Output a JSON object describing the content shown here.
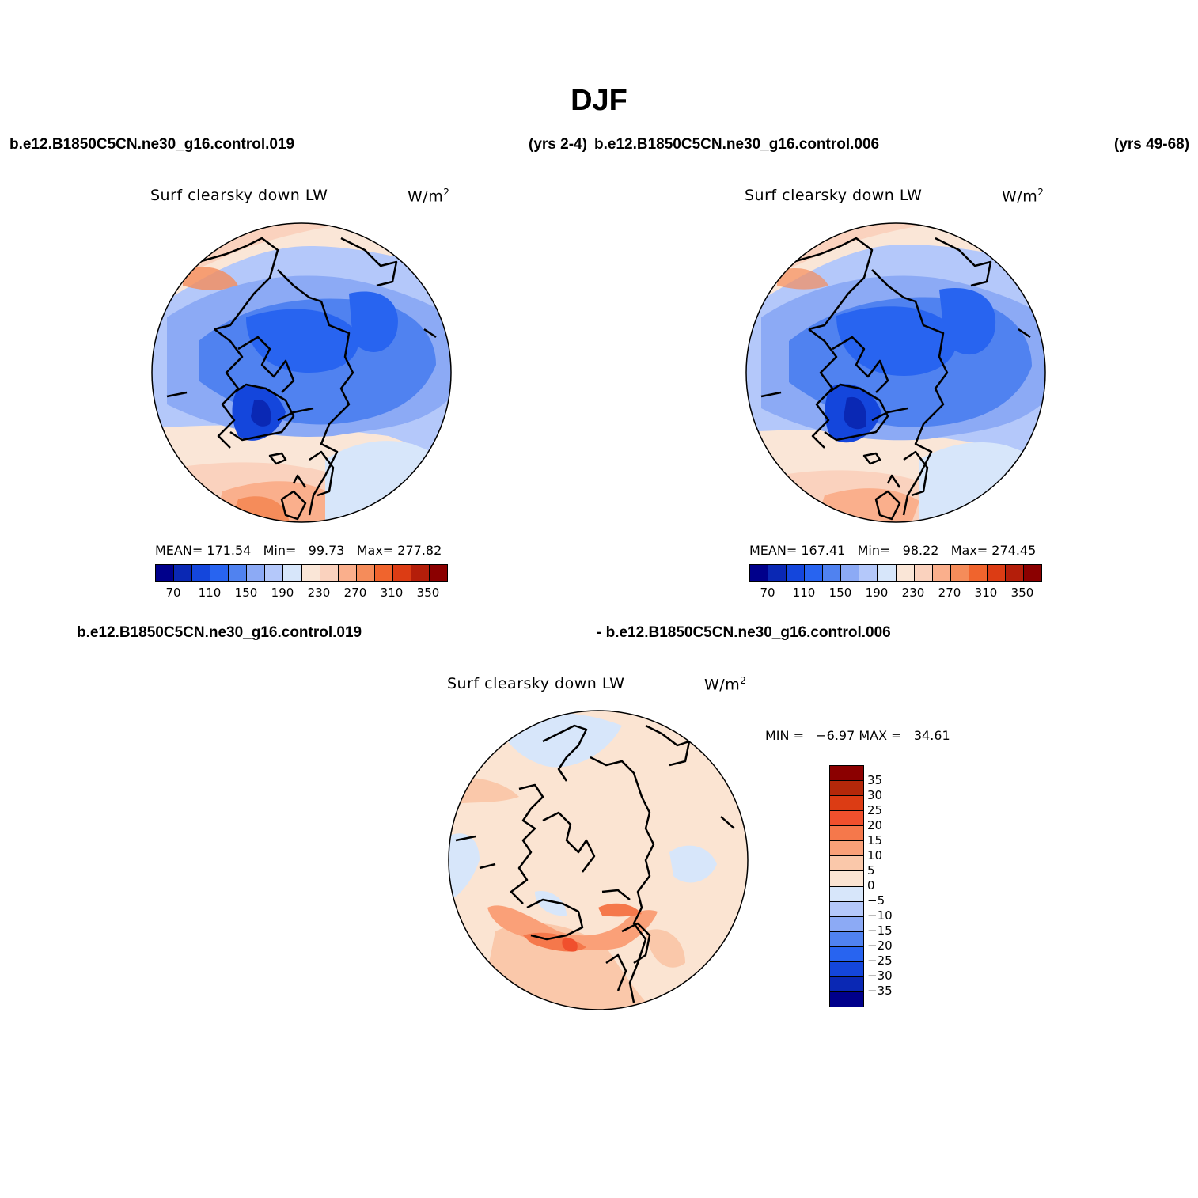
{
  "page": {
    "season_title": "DJF",
    "case1_label": "b.e12.B1850C5CN.ne30_g16.control.019",
    "case1_years": "(yrs 2-4)",
    "case2_label": "b.e12.B1850C5CN.ne30_g16.control.006",
    "case2_years": "(yrs 49-68)",
    "diff_left_label": "b.e12.B1850C5CN.ne30_g16.control.019",
    "diff_right_label": "- b.e12.B1850C5CN.ne30_g16.control.006"
  },
  "panels": [
    {
      "variable": "Surf clearsky down LW",
      "units": "W/m",
      "units_exp": "2",
      "mean_label": "MEAN=",
      "mean": "171.54",
      "min_label": "Min=",
      "min": "99.73",
      "max_label": "Max=",
      "max": "277.82"
    },
    {
      "variable": "Surf clearsky down LW",
      "units": "W/m",
      "units_exp": "2",
      "mean_label": "MEAN=",
      "mean": "167.41",
      "min_label": "Min=",
      "min": "98.22",
      "max_label": "Max=",
      "max": "274.45"
    }
  ],
  "diff_panel": {
    "variable": "Surf clearsky down LW",
    "units": "W/m",
    "units_exp": "2",
    "min_label": "MIN =",
    "min": "−6.97",
    "max_label": "MAX =",
    "max": "34.61"
  },
  "abs_colorbar": {
    "ticks": [
      "70",
      "110",
      "150",
      "190",
      "230",
      "270",
      "310",
      "350"
    ],
    "colors": [
      "#00008b",
      "#0a28b4",
      "#1446dc",
      "#2864f0",
      "#5082f0",
      "#8caaf5",
      "#b4c8fa",
      "#d7e6fa",
      "#fae6d7",
      "#fad2be",
      "#faaf8c",
      "#f58c5a",
      "#f0642d",
      "#dc3c14",
      "#b41e0a",
      "#8b0000"
    ]
  },
  "diff_colorbar": {
    "ticks": [
      "35",
      "30",
      "25",
      "20",
      "15",
      "10",
      "5",
      "0",
      "−5",
      "−10",
      "−15",
      "−20",
      "−25",
      "−30",
      "−35"
    ],
    "colors": [
      "#8b0000",
      "#b4280a",
      "#dc3c14",
      "#f0502d",
      "#f5784b",
      "#faa078",
      "#fac8aa",
      "#fbe4d2",
      "#d7e6fa",
      "#b4c8fa",
      "#8caaf5",
      "#5082f0",
      "#2864f0",
      "#1446dc",
      "#0a28b4",
      "#00008b"
    ]
  }
}
